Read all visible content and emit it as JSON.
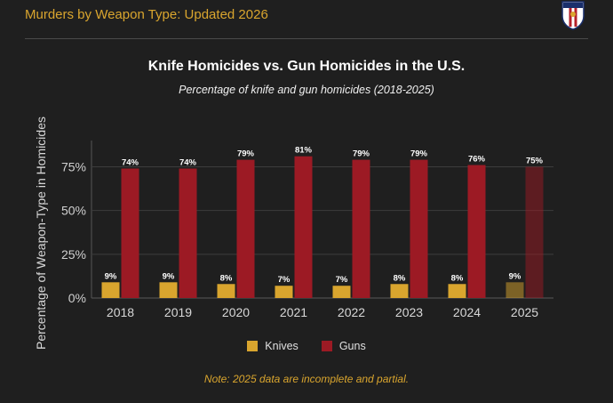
{
  "header": {
    "title": "Murders by Weapon Type: Updated 2026"
  },
  "chart_data": {
    "type": "bar",
    "title": "Knife Homicides vs. Gun Homicides in the U.S.",
    "subtitle": "Percentage of knife and gun homicides (2018-2025)",
    "ylabel": "Percentage of Weapon-Type in Homicides",
    "xlabel": "",
    "categories": [
      "2018",
      "2019",
      "2020",
      "2021",
      "2022",
      "2023",
      "2024",
      "2025"
    ],
    "series": [
      {
        "name": "Knives",
        "values": [
          9,
          9,
          8,
          7,
          7,
          8,
          8,
          9
        ],
        "color": "#d9a52e"
      },
      {
        "name": "Guns",
        "values": [
          74,
          74,
          79,
          81,
          79,
          79,
          76,
          75
        ],
        "color": "#9c1a24"
      }
    ],
    "ylim": [
      0,
      90
    ],
    "yticks": [
      0,
      25,
      50,
      75
    ],
    "ytick_labels": [
      "0%",
      "25%",
      "50%",
      "75%"
    ],
    "data_labels": {
      "Knives": [
        "9%",
        "9%",
        "8%",
        "7%",
        "7%",
        "8%",
        "8%",
        "9%"
      ],
      "Guns": [
        "74%",
        "74%",
        "79%",
        "81%",
        "79%",
        "79%",
        "76%",
        "75%"
      ]
    },
    "partial_category": "2025",
    "grid": true,
    "legend_position": "bottom"
  },
  "note": "Note: 2025 data are incomplete and partial.",
  "colors": {
    "accent": "#d9a52e",
    "background": "#1f1f1f"
  }
}
